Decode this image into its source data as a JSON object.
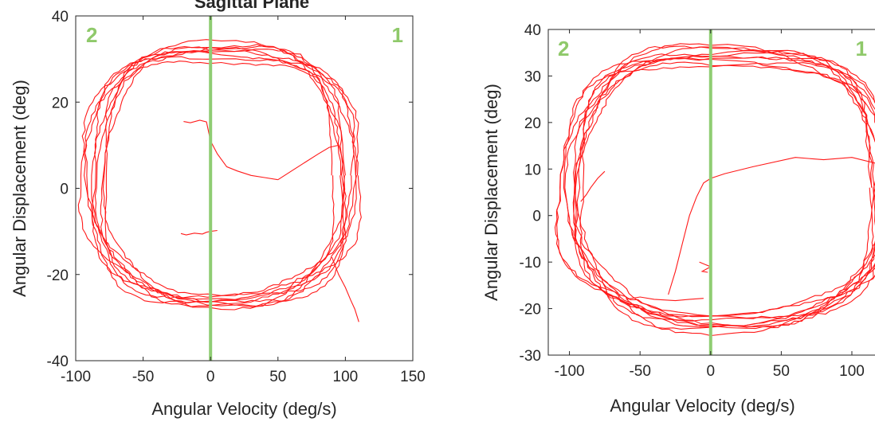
{
  "colors": {
    "trace": "#ff1a1a",
    "divider": "#8fcd73",
    "quadrant_label": "#8fc96a",
    "axis": "#262626",
    "background": "#ffffff"
  },
  "chart_data": [
    {
      "type": "line",
      "title": "Sagittal Plane",
      "xlabel": "Angular Velocity (deg/s)",
      "ylabel": "Angular Displacement (deg)",
      "xlim": [
        -100,
        150
      ],
      "ylim": [
        -40,
        40
      ],
      "xticks": [
        -100,
        -50,
        0,
        50,
        100,
        150
      ],
      "yticks": [
        -40,
        -20,
        0,
        20,
        40
      ],
      "grid": false,
      "divider_x": 0,
      "quadrant_labels": [
        "2",
        "1"
      ],
      "loops": {
        "cx": 8,
        "cy": 3,
        "rx": 97,
        "ry": 29,
        "turns": 9
      },
      "start_segment": {
        "x": [
          -20,
          -15,
          -8,
          -3,
          0,
          5,
          12,
          20,
          30,
          40,
          50
        ],
        "y": [
          15.5,
          15.2,
          15.8,
          15.4,
          11,
          8,
          5,
          4,
          3,
          2.5,
          2
        ]
      },
      "end_segment": {
        "x": [
          90,
          95,
          100,
          104,
          107,
          110
        ],
        "y": [
          -16,
          -20,
          -23,
          -26,
          -28,
          -31
        ]
      },
      "extra_segments": [
        {
          "x": [
            -22,
            -18,
            -12,
            -6,
            -3,
            0,
            5
          ],
          "y": [
            -10.5,
            -10.8,
            -10.4,
            -10.6,
            -10.2,
            -10,
            -9.8
          ]
        },
        {
          "x": [
            50,
            60,
            70,
            80,
            88,
            95
          ],
          "y": [
            2,
            4,
            6,
            8,
            9.5,
            10
          ]
        }
      ]
    },
    {
      "type": "line",
      "title": "",
      "xlabel": "Angular Velocity (deg/s)",
      "ylabel": "Angular Displacement (deg)",
      "xlim": [
        -115,
        135
      ],
      "ylim": [
        -30,
        40
      ],
      "xticks": [
        -100,
        -50,
        0,
        50,
        100
      ],
      "yticks": [
        -30,
        -20,
        -10,
        0,
        10,
        20,
        30,
        40
      ],
      "grid": false,
      "divider_x": 0,
      "quadrant_labels": [
        "2",
        "1"
      ],
      "loops": {
        "cx": 12,
        "cy": 6,
        "rx": 115,
        "ry": 29,
        "turns": 10
      },
      "start_segment": {
        "x": [
          -30,
          -25,
          -20,
          -15,
          -10,
          -5,
          0,
          10,
          30,
          60,
          80,
          100,
          120,
          132
        ],
        "y": [
          -17,
          -12,
          -6,
          0,
          4,
          7,
          8,
          9,
          10.5,
          12.5,
          12,
          12.5,
          11,
          9
        ]
      },
      "end_segment": {
        "x": [
          -75,
          -80,
          -85,
          -88,
          -92
        ],
        "y": [
          9.5,
          8,
          6,
          4.5,
          3
        ]
      },
      "extra_segments": [
        {
          "x": [
            -8,
            -4,
            0,
            -3,
            -6,
            -2
          ],
          "y": [
            -10,
            -10.5,
            -11,
            -11.5,
            -12,
            -12.2
          ]
        },
        {
          "x": [
            -60,
            -50,
            -40,
            -25,
            -15,
            -5
          ],
          "y": [
            -18,
            -17.5,
            -18,
            -18.3,
            -18,
            -17.8
          ]
        }
      ]
    }
  ]
}
